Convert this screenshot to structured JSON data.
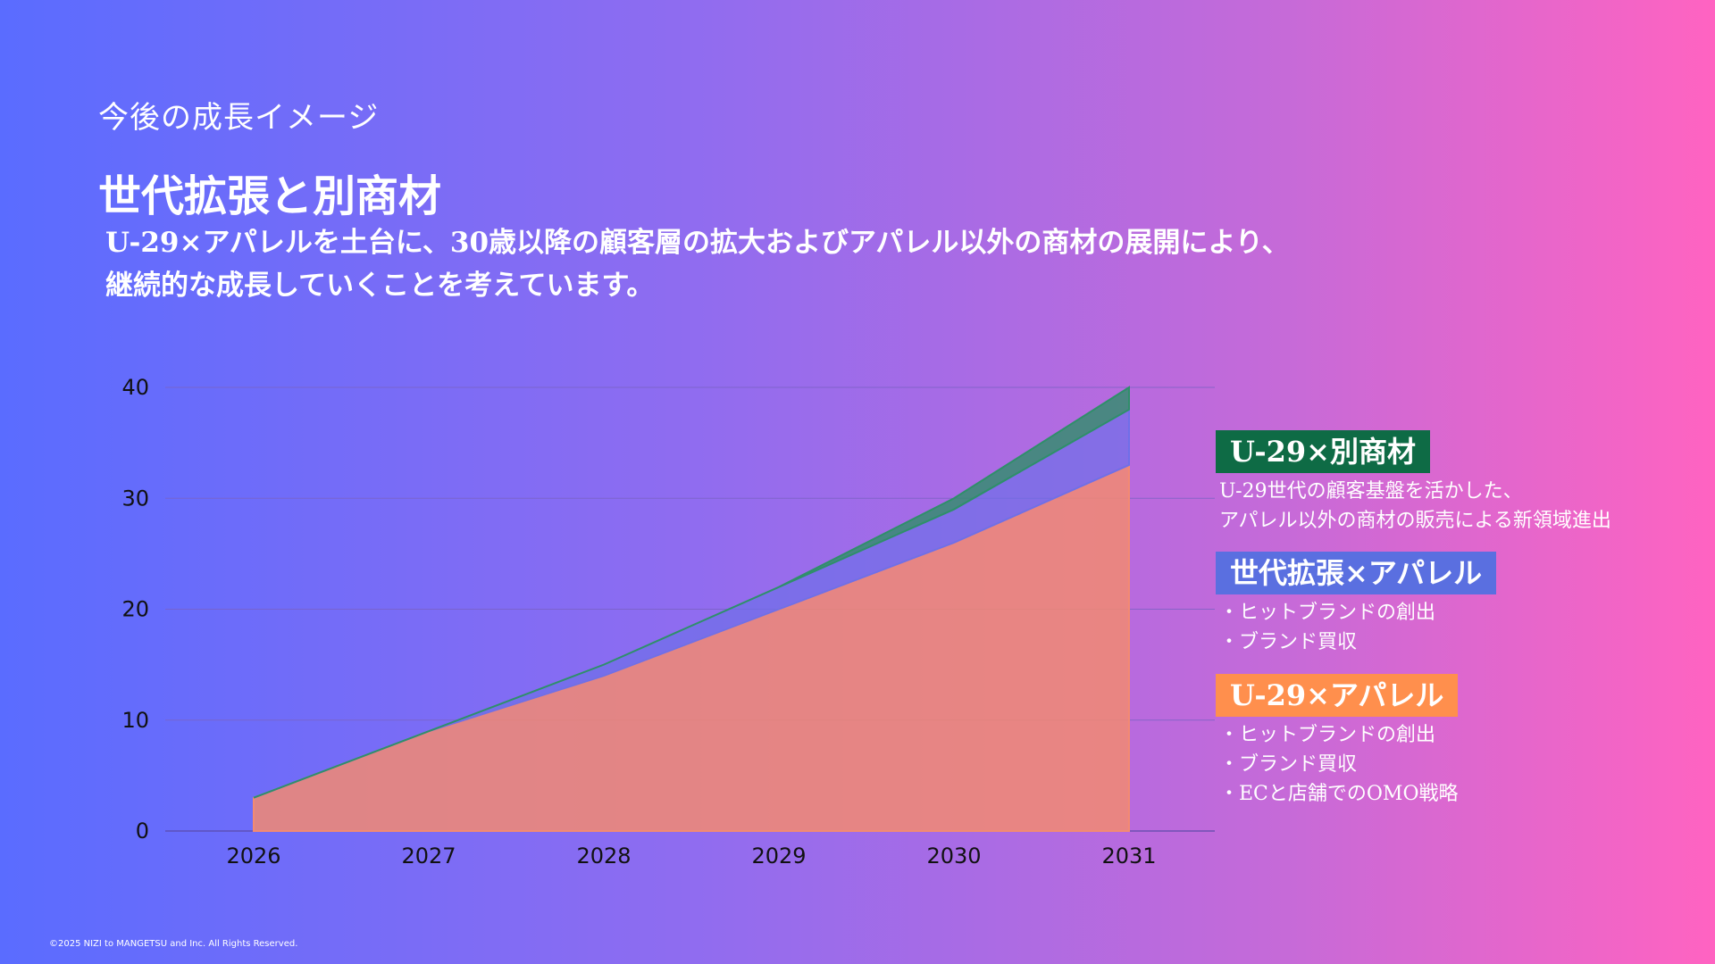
{
  "header": {
    "eyebrow": "今後の成長イメージ",
    "title": "世代拡張と別商材",
    "lead_line1": "U-29×アパレルを土台に、30歳以降の顧客層の拡大およびアパレル以外の商材の展開により、",
    "lead_line2": "継続的な成長していくことを考えています。"
  },
  "legend": [
    {
      "label": "U-29×別商材",
      "color": "#0e6b45",
      "lines": [
        "U-29世代の顧客基盤を活かした、",
        "アパレル以外の商材の販売による新領域進出"
      ]
    },
    {
      "label": "世代拡張×アパレル",
      "color": "#5a6fe0",
      "lines": [
        "・ヒットブランドの創出",
        "・ブランド買収"
      ]
    },
    {
      "label": "U-29×アパレル",
      "color": "#ff8f4d",
      "lines": [
        "・ヒットブランドの創出",
        "・ブランド買収",
        "・ECと店舗でのOMO戦略"
      ]
    }
  ],
  "footer": "©2025 NIZI to MANGETSU and Inc. All Rights Reserved.",
  "chart_data": {
    "type": "area",
    "stacked": true,
    "categories": [
      "2026",
      "2027",
      "2028",
      "2029",
      "2030",
      "2031"
    ],
    "ylim": [
      0,
      40
    ],
    "yticks": [
      0,
      10,
      20,
      30,
      40
    ],
    "grid": true,
    "series": [
      {
        "name": "U-29×アパレル",
        "color": "#f28a72",
        "values": [
          3,
          9,
          14,
          20,
          26,
          33
        ]
      },
      {
        "name": "世代拡張×アパレル",
        "color": "#6f6fe8",
        "values": [
          0,
          0,
          1,
          2,
          3,
          5
        ]
      },
      {
        "name": "U-29×別商材",
        "color": "#2f8f6a",
        "values": [
          0,
          0,
          0,
          0,
          1,
          2
        ]
      }
    ]
  }
}
